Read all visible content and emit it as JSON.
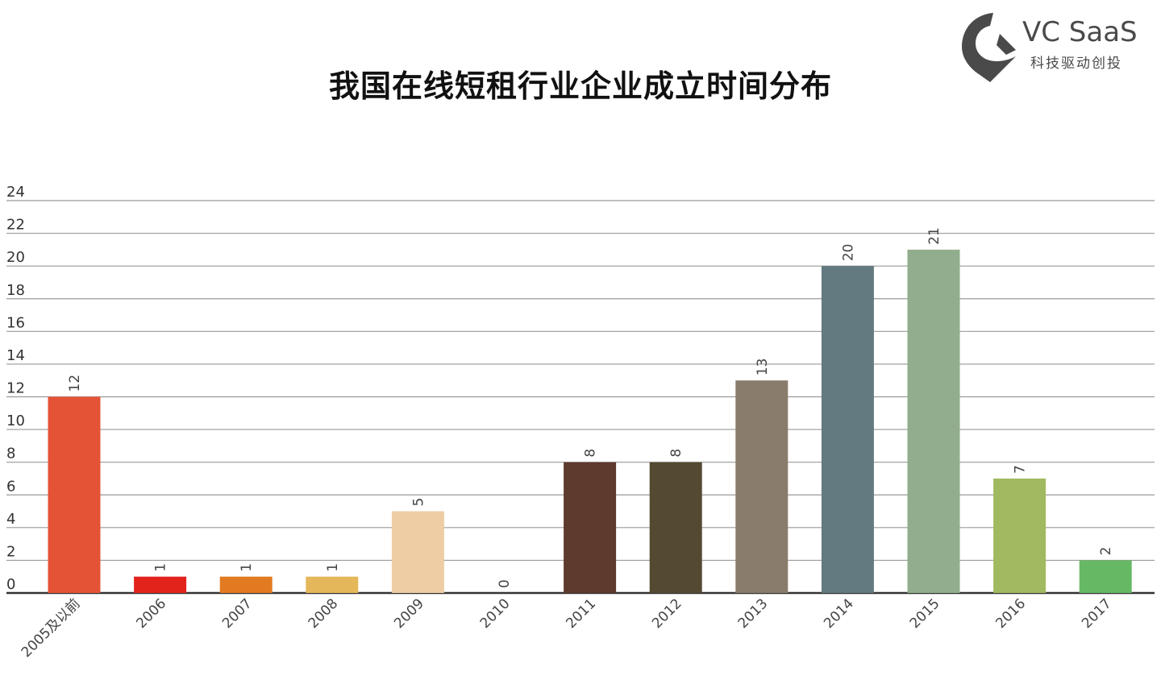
{
  "header": {
    "title": "我国在线短租行业企业成立时间分布"
  },
  "logo": {
    "brand": "VC SaaS",
    "tagline": "科技驱动创投",
    "icon": "vc-saas-logo-icon",
    "color": "#4a4a4a"
  },
  "chart_data": {
    "type": "bar",
    "title": "我国在线短租行业企业成立时间分布",
    "xlabel": "",
    "ylabel": "",
    "ylim": [
      0,
      24
    ],
    "yticks": [
      0,
      2,
      4,
      6,
      8,
      10,
      12,
      14,
      16,
      18,
      20,
      22,
      24
    ],
    "grid": true,
    "categories": [
      "2005及以前",
      "2006",
      "2007",
      "2008",
      "2009",
      "2010",
      "2011",
      "2012",
      "2013",
      "2014",
      "2015",
      "2016",
      "2017"
    ],
    "values": [
      12,
      1,
      1,
      1,
      5,
      0,
      8,
      8,
      13,
      20,
      21,
      7,
      2
    ],
    "colors": [
      "#e55336",
      "#e2231c",
      "#e27a22",
      "#e4b75a",
      "#eecda4",
      "#cccccc",
      "#5d392e",
      "#544a32",
      "#8a7c6c",
      "#627a80",
      "#92ad8d",
      "#a1b95f",
      "#66b865"
    ],
    "gridline_color": "#9a9a9a",
    "axis_color": "#333333"
  }
}
